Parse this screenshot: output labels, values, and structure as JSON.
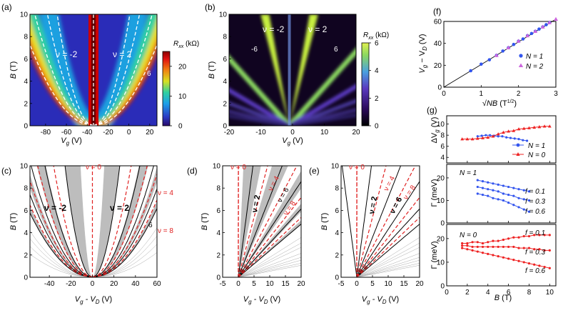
{
  "figure": {
    "panels": {
      "a": {
        "label": "(a)",
        "xlabel": "V",
        "xlabel_sub": "g",
        "xunit": " (V)",
        "ylabel": "B",
        "yunit": " (T)",
        "nu_left": "ν = -2",
        "nu_right": "ν = 2",
        "nu_six": "6",
        "colorbar_label": "R",
        "colorbar_sub": "xx",
        "colorbar_unit": " (kΩ)"
      },
      "b": {
        "label": "(b)",
        "xlabel": "V",
        "xlabel_sub": "g",
        "xunit": " (V)",
        "ylabel": "B",
        "yunit": " (T)",
        "nu_left": "ν = -2",
        "nu_right": "ν = 2",
        "nu_minus6": "-6",
        "nu_six": "6",
        "colorbar_label": "R",
        "colorbar_sub": "xx",
        "colorbar_unit": " (kΩ)"
      },
      "c": {
        "label": "(c)",
        "xlabel": "V",
        "xlabel_sub": "g",
        "xlabel_mid": " - V",
        "xlabel_sub2": "D",
        "xunit": " (V)",
        "ylabel": "B",
        "yunit": " (T)",
        "nu0": "ν = 0",
        "nu4": "ν = 4",
        "nu8": "ν = 8",
        "nu_left": "ν = -2",
        "nu_right": "ν = 2",
        "nu_six": "6"
      },
      "d": {
        "label": "(d)",
        "xlabel": "V",
        "xlabel_sub": "g",
        "xlabel_mid": " - V",
        "xlabel_sub2": "D",
        "xunit": " (V)",
        "ylabel": "B",
        "yunit": " (T)",
        "nu0": "ν = 0",
        "nu4": "ν = 4",
        "nu8": "ν = 8",
        "nu2": "ν = 2",
        "nu6": "ν = 6"
      },
      "e": {
        "label": "(e)",
        "xlabel": "V",
        "xlabel_sub": "g",
        "xlabel_mid": " - V",
        "xlabel_sub2": "D",
        "xunit": " (V)",
        "ylabel": "B",
        "yunit": " (T)",
        "nu0": "ν = 0",
        "nu4": "ν = 4",
        "nu8": "ν = 8",
        "nu2": "ν = 2",
        "nu6": "ν = 6"
      },
      "f": {
        "label": "(f)",
        "ylabel": "V",
        "ylabel_sub": "g",
        "ylabel_mid": " − V",
        "ylabel_sub2": "D",
        "yunit": " (V)",
        "xlabel_root": "√NB",
        "xunit": " (T",
        "xunit_sup": "1/2",
        "xunit_close": ")",
        "legend1": "N = 1",
        "legend2": "N = 2"
      },
      "g": {
        "label": "(g)",
        "ylabel_top": "ΔV",
        "ylabel_top_sub": "g",
        "yunit_top": " (V)",
        "ylabel_gamma": "Γ (meV)",
        "xlabel": "B",
        "xunit": " (T)",
        "legend1": "N = 1",
        "legend0": "N = 0",
        "mid_title": "N = 1",
        "bot_title": "N = 0",
        "f01": "f = 0.1",
        "f03": "f = 0.3",
        "f06": "f = 0.6"
      }
    }
  },
  "chart_data": [
    {
      "id": "a",
      "type": "heatmap",
      "x_label": "Vg (V)",
      "y_label": "B (T)",
      "xlim": [
        -95,
        27
      ],
      "ylim": [
        0,
        10
      ],
      "xticks": [
        -80,
        -60,
        -40,
        -20,
        0,
        20
      ],
      "yticks": [
        0,
        2,
        4,
        6,
        8,
        10
      ],
      "dirac_point_V": -34,
      "colorbar": {
        "label": "Rxx (kΩ)",
        "range": [
          0,
          25
        ],
        "ticks": [
          0,
          10,
          20
        ]
      }
    },
    {
      "id": "b",
      "type": "heatmap",
      "x_label": "Vg (V)",
      "y_label": "B (T)",
      "xlim": [
        -20,
        20
      ],
      "ylim": [
        0,
        10
      ],
      "xticks": [
        -20,
        -10,
        0,
        10,
        20
      ],
      "yticks": [
        0,
        2,
        4,
        6,
        8,
        10
      ],
      "dirac_point_V": -1,
      "colorbar": {
        "label": "Rxx (kΩ)",
        "range": [
          0,
          6
        ],
        "ticks": [
          0,
          2,
          4,
          6
        ]
      }
    },
    {
      "id": "c",
      "type": "line",
      "x_label": "Vg - VD (V)",
      "y_label": "B (T)",
      "xlim": [
        -58,
        60
      ],
      "ylim": [
        0,
        10
      ],
      "xticks": [
        -40,
        -20,
        0,
        20,
        40,
        60
      ],
      "yticks": [
        0,
        2,
        4,
        6,
        8,
        10
      ],
      "model": "B = k * (Vg - VD)^2 / nu"
    },
    {
      "id": "d",
      "type": "line",
      "x_label": "Vg - VD (V)",
      "y_label": "B (T)",
      "xlim": [
        -5,
        20
      ],
      "ylim": [
        0,
        10
      ],
      "xticks": [
        -5,
        0,
        5,
        10,
        15,
        20
      ],
      "yticks": [
        0,
        2,
        4,
        6,
        8,
        10
      ],
      "model": "B = k * (Vg - VD) / nu"
    },
    {
      "id": "e",
      "type": "line",
      "x_label": "Vg - VD (V)",
      "y_label": "B (T)",
      "xlim": [
        -5,
        20
      ],
      "ylim": [
        0,
        10
      ],
      "xticks": [
        -5,
        0,
        5,
        10,
        15,
        20
      ],
      "yticks": [
        0,
        2,
        4,
        6,
        8,
        10
      ],
      "model": "B = k * (Vg - VD) / nu"
    },
    {
      "id": "f",
      "type": "scatter",
      "x_label": "sqrt(NB) (T^1/2)",
      "y_label": "Vg − VD (V)",
      "xlim": [
        0,
        3
      ],
      "ylim": [
        0,
        60
      ],
      "xticks": [
        0,
        1,
        2,
        3
      ],
      "yticks": [
        0,
        20,
        40,
        60
      ],
      "fit_slope": 20.8,
      "series": [
        {
          "name": "N = 1",
          "color": "#3355ee",
          "marker": "circle",
          "x": [
            0.72,
            1.0,
            1.22,
            1.41,
            1.58,
            1.73,
            1.87,
            2.0,
            2.12,
            2.24,
            2.35,
            2.45,
            2.55,
            2.65,
            2.74,
            2.83
          ],
          "y": [
            15,
            21,
            25,
            29,
            33,
            36,
            39,
            42,
            44,
            47,
            49,
            51,
            53,
            55,
            57,
            59
          ]
        },
        {
          "name": "N = 2",
          "color": "#cc66dd",
          "marker": "triangle",
          "x": [
            1.41,
            1.73,
            2.0,
            2.24,
            2.45,
            2.65,
            2.83,
            3.0
          ],
          "y": [
            29,
            36,
            42,
            47,
            51,
            55,
            59,
            62
          ]
        }
      ]
    },
    {
      "id": "g_top",
      "type": "line",
      "x_label": "B (T)",
      "y_label": "ΔVg (V)",
      "xlim": [
        0,
        10.6
      ],
      "ylim": [
        3,
        11.5
      ],
      "yticks": [
        4,
        6,
        8,
        10
      ],
      "series": [
        {
          "name": "N = 1",
          "color": "#3355ee",
          "x": [
            3,
            3.4,
            3.8,
            4.2,
            4.6,
            5,
            5.4,
            5.8,
            6.2,
            6.6,
            7,
            7.4,
            7.8
          ],
          "y": [
            7.8,
            7.9,
            8.0,
            8.0,
            7.9,
            7.8,
            7.8,
            7.6,
            7.5,
            7.4,
            7.3,
            7.1,
            7.0
          ]
        },
        {
          "name": "N = 0",
          "color": "#ee2222",
          "x": [
            1.5,
            2,
            2.5,
            3,
            3.5,
            4,
            4.5,
            5,
            5.5,
            6,
            6.5,
            7,
            7.5,
            8,
            8.5,
            9,
            9.5,
            10
          ],
          "y": [
            7.3,
            7.3,
            7.3,
            7.4,
            7.5,
            7.6,
            7.8,
            8.2,
            8.5,
            8.7,
            8.8,
            9.1,
            9.2,
            9.3,
            9.4,
            9.5,
            9.6,
            9.6
          ]
        }
      ]
    },
    {
      "id": "g_mid",
      "type": "line",
      "title": "N = 1",
      "x_label": "B (T)",
      "y_label": "Γ (meV)",
      "xlim": [
        0,
        10.6
      ],
      "ylim": [
        0,
        26
      ],
      "yticks": [
        0,
        10,
        20
      ],
      "series": [
        {
          "name": "f = 0.1",
          "color": "#3355ee",
          "x": [
            3,
            3.5,
            4,
            4.5,
            5,
            5.5,
            6,
            6.5,
            7,
            7.5,
            8
          ],
          "y": [
            19,
            18.5,
            18,
            17.5,
            17,
            16.5,
            16,
            15.5,
            15,
            14.5,
            14
          ]
        },
        {
          "name": "f = 0.3",
          "color": "#3355ee",
          "x": [
            3,
            3.5,
            4,
            4.5,
            5,
            5.5,
            6,
            6.5,
            7,
            7.5,
            8
          ],
          "y": [
            16,
            15.5,
            15,
            14.5,
            14,
            13,
            12.5,
            12,
            11,
            10.5,
            10
          ]
        },
        {
          "name": "f = 0.6",
          "color": "#3355ee",
          "x": [
            3,
            3.5,
            4,
            4.5,
            5,
            5.5,
            6,
            6.5,
            7,
            7.5,
            8
          ],
          "y": [
            13,
            12.5,
            12,
            11,
            10.5,
            10,
            9,
            8,
            7,
            6,
            5
          ]
        }
      ]
    },
    {
      "id": "g_bot",
      "type": "line",
      "title": "N = 0",
      "x_label": "B (T)",
      "y_label": "Γ (meV)",
      "xlim": [
        0,
        10.6
      ],
      "ylim": [
        0,
        26
      ],
      "xticks": [
        0,
        2,
        4,
        6,
        8,
        10
      ],
      "yticks": [
        0,
        10,
        20
      ],
      "series": [
        {
          "name": "f = 0.1",
          "color": "#ee2222",
          "x": [
            1.5,
            2,
            2.5,
            3,
            3.5,
            4,
            4.5,
            5,
            5.5,
            6,
            6.5,
            7,
            7.5,
            8,
            8.5,
            9,
            9.5,
            10
          ],
          "y": [
            18,
            18,
            18.5,
            18.5,
            18,
            18.5,
            19,
            19,
            19.5,
            20,
            20.5,
            20.5,
            21,
            21,
            21.5,
            21.5,
            21.5,
            21.5
          ]
        },
        {
          "name": "f = 0.3",
          "color": "#ee2222",
          "x": [
            1.5,
            2,
            2.5,
            3,
            3.5,
            4,
            4.5,
            5,
            5.5,
            6,
            6.5,
            7,
            7.5,
            8,
            8.5,
            9,
            9.5,
            10
          ],
          "y": [
            17,
            17,
            16.5,
            16.5,
            16.5,
            16.5,
            16.5,
            16.5,
            16.5,
            16.5,
            16.5,
            16,
            16,
            16,
            15.5,
            15.5,
            15,
            15
          ]
        },
        {
          "name": "f = 0.6",
          "color": "#ee2222",
          "x": [
            1.5,
            2,
            2.5,
            3,
            3.5,
            4,
            4.5,
            5,
            5.5,
            6,
            6.5,
            7,
            7.5,
            8,
            8.5,
            9,
            9.5,
            10
          ],
          "y": [
            16,
            15.5,
            15,
            14.5,
            14,
            13.5,
            13,
            12.5,
            12,
            11.5,
            11,
            10.5,
            10,
            9.5,
            9,
            8.5,
            8,
            7.5
          ]
        }
      ]
    }
  ]
}
